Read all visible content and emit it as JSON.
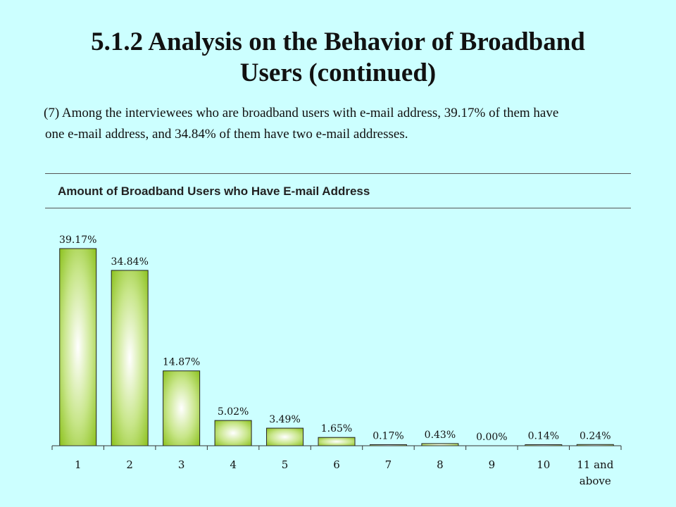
{
  "header": {
    "title_line1": "5.1.2 Analysis on the Behavior of Broadband",
    "title_line2": "Users (continued)"
  },
  "description": {
    "line1": "(7) Among the interviewees who are broadband users with e-mail address, 39.17% of them have",
    "line2": "one e-mail address, and 34.84% of them have two e-mail addresses."
  },
  "colors": {
    "background": "#ccffff",
    "bar_edge": "#8dc21f",
    "bar_center": "#ffffff"
  },
  "chart_data": {
    "type": "bar",
    "title": "Amount of Broadband Users who Have E-mail Address",
    "categories": [
      "1",
      "2",
      "3",
      "4",
      "5",
      "6",
      "7",
      "8",
      "9",
      "10",
      "11 and above"
    ],
    "values": [
      39.17,
      34.84,
      14.87,
      5.02,
      3.49,
      1.65,
      0.17,
      0.43,
      0.0,
      0.14,
      0.24
    ],
    "labels": [
      "39.17%",
      "34.84%",
      "14.87%",
      "5.02%",
      "3.49%",
      "1.65%",
      "0.17%",
      "0.43%",
      "0.00%",
      "0.14%",
      "0.24%"
    ],
    "ylim": [
      0,
      39.17
    ],
    "grid": false,
    "legend": "none"
  }
}
